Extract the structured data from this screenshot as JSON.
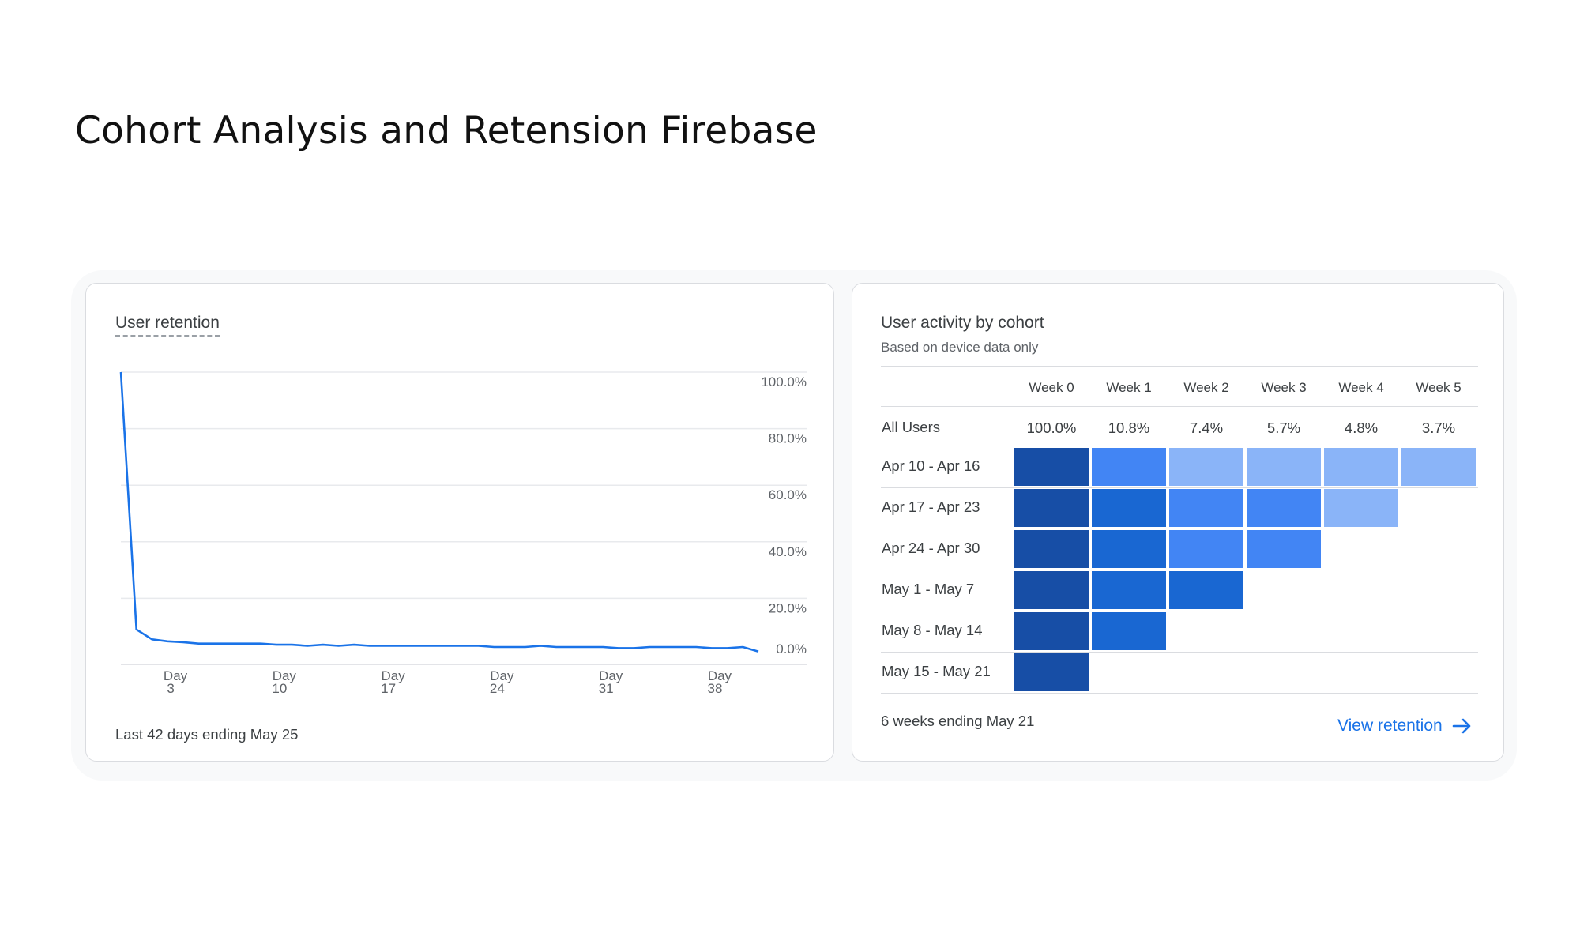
{
  "page": {
    "title": "Cohort Analysis and Retension Firebase"
  },
  "retention": {
    "title": "User retention",
    "footer": "Last 42 days ending May 25",
    "chart_data": {
      "type": "line",
      "y_ticks": [
        "100.0%",
        "80.0%",
        "60.0%",
        "40.0%",
        "20.0%",
        "0.0%"
      ],
      "x_ticks": [
        {
          "day": 3,
          "label_top": "Day",
          "label_bottom": "3"
        },
        {
          "day": 10,
          "label_top": "Day",
          "label_bottom": "10"
        },
        {
          "day": 17,
          "label_top": "Day",
          "label_bottom": "17"
        },
        {
          "day": 24,
          "label_top": "Day",
          "label_bottom": "24"
        },
        {
          "day": 31,
          "label_top": "Day",
          "label_bottom": "31"
        },
        {
          "day": 38,
          "label_top": "Day",
          "label_bottom": "38"
        }
      ],
      "x_range": [
        0,
        41
      ],
      "ylim": [
        0,
        100
      ],
      "grid": true,
      "color": "#1a73e8",
      "x": [
        0,
        1,
        2,
        3,
        4,
        5,
        6,
        7,
        8,
        9,
        10,
        11,
        12,
        13,
        14,
        15,
        16,
        17,
        18,
        19,
        20,
        21,
        22,
        23,
        24,
        25,
        26,
        27,
        28,
        29,
        30,
        31,
        32,
        33,
        34,
        35,
        36,
        37,
        38,
        39,
        40,
        41
      ],
      "values": [
        100,
        9,
        5.5,
        4.8,
        4.5,
        4,
        4,
        4,
        4,
        4,
        3.6,
        3.6,
        3.2,
        3.6,
        3.2,
        3.6,
        3.2,
        3.2,
        3.2,
        3.2,
        3.2,
        3.2,
        3.2,
        3.2,
        2.8,
        2.8,
        2.8,
        3.2,
        2.8,
        2.8,
        2.8,
        2.8,
        2.4,
        2.4,
        2.8,
        2.8,
        2.8,
        2.8,
        2.4,
        2.4,
        2.8,
        1.2
      ]
    }
  },
  "cohort": {
    "title": "User activity by cohort",
    "subtitle": "Based on device data only",
    "weeks": [
      "Week 0",
      "Week 1",
      "Week 2",
      "Week 3",
      "Week 4",
      "Week 5"
    ],
    "all_users_label": "All Users",
    "all_users": [
      "100.0%",
      "10.8%",
      "7.4%",
      "5.7%",
      "4.8%",
      "3.7%"
    ],
    "rows": [
      {
        "label": "Apr 10 - Apr 16",
        "levels": [
          4,
          2,
          1,
          1,
          1,
          1
        ]
      },
      {
        "label": "Apr 17 - Apr 23",
        "levels": [
          4,
          3,
          2,
          2,
          1
        ]
      },
      {
        "label": "Apr 24 - Apr 30",
        "levels": [
          4,
          3,
          2,
          2
        ]
      },
      {
        "label": "May 1 - May 7",
        "levels": [
          4,
          3,
          3
        ]
      },
      {
        "label": "May 8 - May 14",
        "levels": [
          4,
          3
        ]
      },
      {
        "label": "May 15 - May 21",
        "levels": [
          4
        ]
      }
    ],
    "level_colors": {
      "1": "#8ab4f8",
      "2": "#4285f4",
      "3": "#1967d2",
      "4": "#174ea6"
    },
    "footer": "6 weeks ending May 21",
    "link_label": "View retention"
  }
}
